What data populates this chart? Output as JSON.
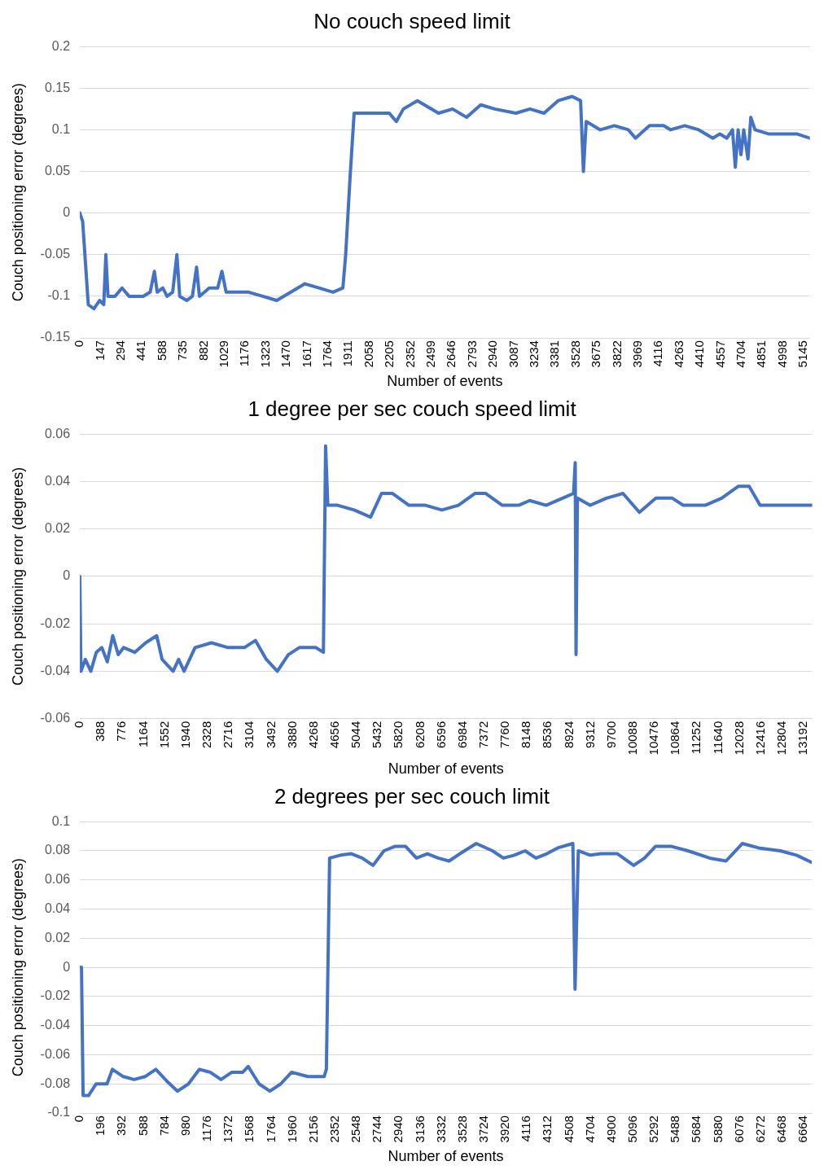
{
  "chart_data": [
    {
      "type": "line",
      "title": "No couch speed limit",
      "xlabel": "Number of events",
      "ylabel": "Couch positioning error (degrees)",
      "grid": "y",
      "legend": false,
      "marker": "none",
      "line_style": "solid",
      "xlim": [
        0,
        5190
      ],
      "xticks": [
        0,
        147,
        294,
        441,
        588,
        735,
        882,
        1029,
        1176,
        1323,
        1470,
        1617,
        1764,
        1911,
        2058,
        2205,
        2352,
        2499,
        2646,
        2793,
        2940,
        3087,
        3234,
        3381,
        3528,
        3675,
        3822,
        3969,
        4116,
        4263,
        4410,
        4557,
        4704,
        4851,
        4998,
        5145
      ],
      "ylim": [
        -0.15,
        0.2
      ],
      "yticks": [
        -0.15,
        -0.1,
        -0.05,
        0,
        0.05,
        0.1,
        0.15,
        0.2
      ],
      "series": [
        {
          "color": "#4472c4",
          "x": [
            0,
            20,
            60,
            100,
            140,
            170,
            185,
            200,
            250,
            300,
            350,
            450,
            500,
            530,
            550,
            590,
            620,
            660,
            690,
            710,
            760,
            800,
            830,
            850,
            920,
            980,
            1010,
            1040,
            1100,
            1200,
            1300,
            1400,
            1500,
            1600,
            1700,
            1800,
            1870,
            1890,
            1920,
            1950,
            2050,
            2200,
            2250,
            2300,
            2400,
            2550,
            2650,
            2750,
            2850,
            2950,
            3100,
            3200,
            3300,
            3400,
            3500,
            3560,
            3580,
            3600,
            3700,
            3800,
            3900,
            3950,
            4050,
            4150,
            4200,
            4300,
            4400,
            4500,
            4550,
            4600,
            4640,
            4660,
            4680,
            4700,
            4720,
            4750,
            4770,
            4800,
            4900,
            5000,
            5100,
            5190
          ],
          "values": [
            0,
            -0.01,
            -0.11,
            -0.115,
            -0.105,
            -0.11,
            -0.05,
            -0.1,
            -0.1,
            -0.09,
            -0.1,
            -0.1,
            -0.095,
            -0.07,
            -0.095,
            -0.09,
            -0.1,
            -0.095,
            -0.05,
            -0.1,
            -0.105,
            -0.1,
            -0.065,
            -0.1,
            -0.09,
            -0.09,
            -0.07,
            -0.095,
            -0.095,
            -0.095,
            -0.1,
            -0.105,
            -0.095,
            -0.085,
            -0.09,
            -0.095,
            -0.09,
            -0.05,
            0.04,
            0.12,
            0.12,
            0.12,
            0.11,
            0.125,
            0.135,
            0.12,
            0.125,
            0.115,
            0.13,
            0.125,
            0.12,
            0.125,
            0.12,
            0.135,
            0.14,
            0.135,
            0.05,
            0.11,
            0.1,
            0.105,
            0.1,
            0.09,
            0.105,
            0.105,
            0.1,
            0.105,
            0.1,
            0.09,
            0.095,
            0.09,
            0.1,
            0.055,
            0.1,
            0.07,
            0.1,
            0.065,
            0.115,
            0.1,
            0.095,
            0.095,
            0.095,
            0.09
          ]
        }
      ]
    },
    {
      "type": "line",
      "title": "1 degree per sec couch speed limit",
      "xlabel": "Number of events",
      "ylabel": "Couch positioning error (degrees)",
      "grid": "y",
      "legend": false,
      "marker": "none",
      "line_style": "solid",
      "xlim": [
        0,
        13350
      ],
      "xticks": [
        0,
        388,
        776,
        1164,
        1552,
        1940,
        2328,
        2716,
        3104,
        3492,
        3880,
        4268,
        4656,
        5044,
        5432,
        5820,
        6208,
        6596,
        6984,
        7372,
        7760,
        8148,
        8536,
        8924,
        9312,
        9700,
        10088,
        10476,
        10864,
        11252,
        11640,
        12028,
        12416,
        12804,
        13192
      ],
      "ylim": [
        -0.06,
        0.06
      ],
      "yticks": [
        -0.06,
        -0.04,
        -0.02,
        0,
        0.02,
        0.04,
        0.06
      ],
      "series": [
        {
          "color": "#4472c4",
          "x": [
            0,
            20,
            100,
            200,
            300,
            400,
            500,
            600,
            700,
            800,
            1000,
            1200,
            1400,
            1500,
            1700,
            1800,
            1900,
            2100,
            2400,
            2700,
            3000,
            3200,
            3400,
            3600,
            3800,
            4000,
            4300,
            4440,
            4480,
            4520,
            4700,
            5000,
            5300,
            5500,
            5700,
            6000,
            6300,
            6600,
            6900,
            7200,
            7400,
            7700,
            8000,
            8200,
            8500,
            8800,
            9000,
            9030,
            9045,
            9070,
            9300,
            9600,
            9900,
            10200,
            10500,
            10800,
            11000,
            11400,
            11700,
            12000,
            12200,
            12400,
            12700,
            13000,
            13350
          ],
          "values": [
            0,
            -0.04,
            -0.035,
            -0.04,
            -0.032,
            -0.03,
            -0.036,
            -0.025,
            -0.033,
            -0.03,
            -0.032,
            -0.028,
            -0.025,
            -0.035,
            -0.04,
            -0.035,
            -0.04,
            -0.03,
            -0.028,
            -0.03,
            -0.03,
            -0.027,
            -0.035,
            -0.04,
            -0.033,
            -0.03,
            -0.03,
            -0.032,
            0.055,
            0.03,
            0.03,
            0.028,
            0.025,
            0.035,
            0.035,
            0.03,
            0.03,
            0.028,
            0.03,
            0.035,
            0.035,
            0.03,
            0.03,
            0.032,
            0.03,
            0.033,
            0.035,
            0.048,
            -0.033,
            0.033,
            0.03,
            0.033,
            0.035,
            0.027,
            0.033,
            0.033,
            0.03,
            0.03,
            0.033,
            0.038,
            0.038,
            0.03,
            0.03,
            0.03,
            0.03
          ]
        }
      ]
    },
    {
      "type": "line",
      "title": "2 degrees per sec couch limit",
      "xlabel": "Number of events",
      "ylabel": "Couch positioning error (degrees)",
      "grid": "y",
      "legend": false,
      "marker": "none",
      "line_style": "solid",
      "xlim": [
        0,
        6740
      ],
      "xticks": [
        0,
        196,
        392,
        588,
        784,
        980,
        1176,
        1372,
        1568,
        1764,
        1960,
        2156,
        2352,
        2548,
        2744,
        2940,
        3136,
        3332,
        3528,
        3724,
        3920,
        4116,
        4312,
        4508,
        4704,
        4900,
        5096,
        5292,
        5488,
        5684,
        5880,
        6076,
        6272,
        6468,
        6664
      ],
      "ylim": [
        -0.1,
        0.1
      ],
      "yticks": [
        -0.1,
        -0.08,
        -0.06,
        -0.04,
        -0.02,
        0,
        0.02,
        0.04,
        0.06,
        0.08,
        0.1
      ],
      "series": [
        {
          "color": "#4472c4",
          "x": [
            0,
            15,
            30,
            80,
            150,
            250,
            300,
            400,
            500,
            600,
            700,
            800,
            900,
            1000,
            1100,
            1200,
            1300,
            1400,
            1500,
            1550,
            1650,
            1750,
            1850,
            1950,
            2100,
            2250,
            2270,
            2300,
            2400,
            2500,
            2600,
            2700,
            2800,
            2900,
            3000,
            3100,
            3200,
            3300,
            3400,
            3500,
            3650,
            3800,
            3900,
            4000,
            4100,
            4200,
            4300,
            4400,
            4540,
            4560,
            4590,
            4700,
            4800,
            4950,
            5100,
            5200,
            5300,
            5450,
            5600,
            5800,
            5950,
            6100,
            6250,
            6450,
            6600,
            6740
          ],
          "values": [
            0,
            0,
            -0.088,
            -0.088,
            -0.08,
            -0.08,
            -0.07,
            -0.075,
            -0.077,
            -0.075,
            -0.07,
            -0.078,
            -0.085,
            -0.08,
            -0.07,
            -0.072,
            -0.077,
            -0.072,
            -0.072,
            -0.068,
            -0.08,
            -0.085,
            -0.08,
            -0.072,
            -0.075,
            -0.075,
            -0.07,
            0.075,
            0.077,
            0.078,
            0.075,
            0.07,
            0.08,
            0.083,
            0.083,
            0.075,
            0.078,
            0.075,
            0.073,
            0.078,
            0.085,
            0.08,
            0.075,
            0.077,
            0.08,
            0.075,
            0.078,
            0.082,
            0.085,
            -0.015,
            0.08,
            0.077,
            0.078,
            0.078,
            0.07,
            0.075,
            0.083,
            0.083,
            0.08,
            0.075,
            0.073,
            0.085,
            0.082,
            0.08,
            0.077,
            0.072
          ]
        }
      ]
    }
  ]
}
